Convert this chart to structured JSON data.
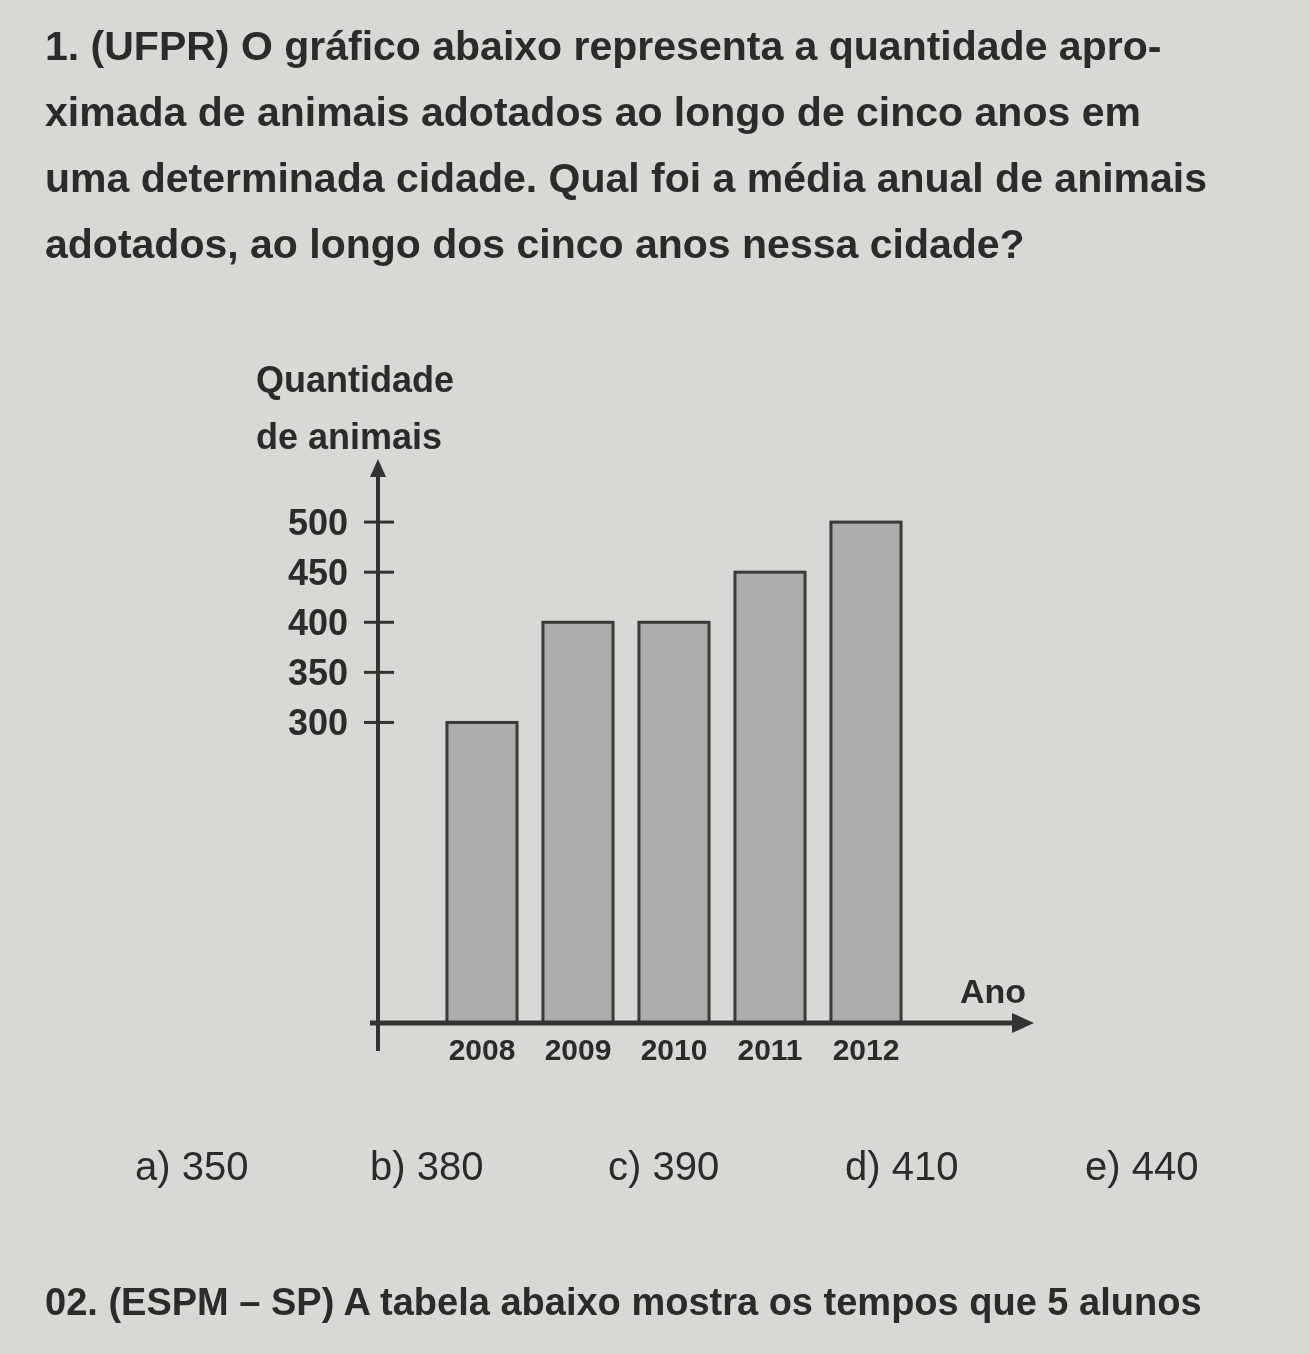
{
  "chart_data": {
    "type": "bar",
    "title": "1. (UFPR) O gráfico abaixo representa a quantidade apro-\nximada de animais adotados ao longo de cinco anos em\numa determinada cidade. Qual foi a média anual de animais\nadotados, ao longo dos cinco anos nessa cidade?",
    "ylabel": "Quantidade\nde animais",
    "xlabel": "Ano",
    "categories": [
      "2008",
      "2009",
      "2010",
      "2011",
      "2012"
    ],
    "values": [
      300,
      400,
      400,
      450,
      500
    ],
    "color": "#aeacaa",
    "ylim": [
      0,
      545
    ],
    "yticks": [
      300,
      350,
      400,
      450,
      500
    ],
    "annotations": [
      "a) 350",
      "b) 380",
      "c) 390",
      "d) 410",
      "e) 440",
      "02. (ESPM – SP) A tabela abaixo mostra os tempos que 5 alunos"
    ]
  }
}
